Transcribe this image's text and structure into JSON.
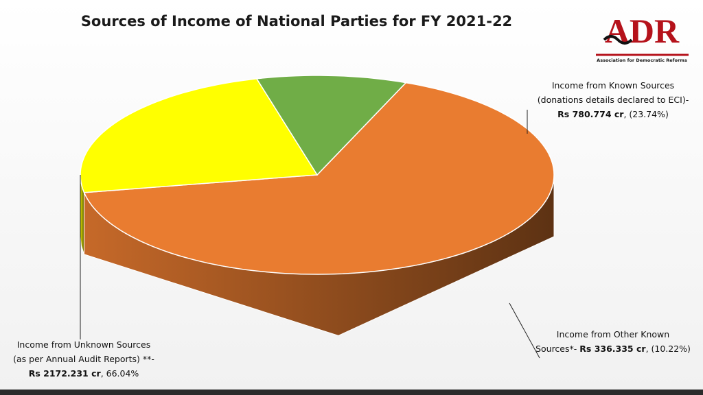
{
  "chart_data": {
    "type": "pie",
    "title": "Sources of Income of National Parties for FY 2021-22",
    "logo": {
      "name": "ADR",
      "tagline": "Association for Democratic Reforms"
    },
    "categories": [
      [
        "Income from Unknown Sources",
        "(as per Annual Audit Reports) **-"
      ],
      [
        "Income from Known Sources",
        "(donations details declared to ECI)-"
      ],
      [
        "Income from Other Known",
        "Sources*-"
      ]
    ],
    "values": [
      66.04,
      23.74,
      10.22
    ],
    "value_labels": [
      ", 66.04%",
      ", (23.74%)",
      ", (10.22%)"
    ],
    "amounts": [
      2172.231,
      780.774,
      336.335
    ],
    "amount_labels": [
      "Rs 2172.231 cr",
      "Rs 780.774 cr",
      "Rs 336.335 cr"
    ],
    "colors": [
      "#e97c30",
      "#ffff00",
      "#70ad47"
    ]
  }
}
